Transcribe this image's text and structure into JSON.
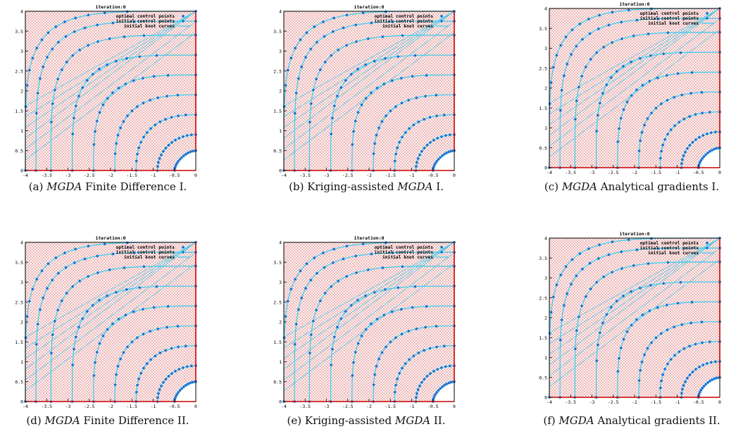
{
  "figure": {
    "panels": [
      {
        "id": "a",
        "caption": {
          "tag": "(a)",
          "pre": "",
          "em": "MGDA",
          "post": " Finite Difference I."
        }
      },
      {
        "id": "b",
        "caption": {
          "tag": "(b)",
          "pre": "Kriging-assisted ",
          "em": "MGDA",
          "post": " I."
        }
      },
      {
        "id": "c",
        "caption": {
          "tag": "(c)",
          "pre": "",
          "em": "MGDA",
          "post": " Analytical gradients I."
        }
      },
      {
        "id": "d",
        "caption": {
          "tag": "(d)",
          "pre": "",
          "em": "MGDA",
          "post": " Finite Difference II."
        }
      },
      {
        "id": "e",
        "caption": {
          "tag": "(e)",
          "pre": "Kriging-assisted ",
          "em": "MGDA",
          "post": " II."
        }
      },
      {
        "id": "f",
        "caption": {
          "tag": "(f)",
          "pre": "",
          "em": "MGDA",
          "post": " Analytical gradients II."
        }
      }
    ]
  },
  "chart_data": {
    "type": "scatter",
    "title": "iteration:0",
    "legend": [
      "optimal control points",
      "initial control points",
      "initial knot curves"
    ],
    "legend_placement": "top-right",
    "xlim": [
      -4,
      0
    ],
    "ylim": [
      0,
      4
    ],
    "xticks": [
      "-4",
      "-3.5",
      "-3",
      "-2.5",
      "-2",
      "-1.5",
      "-1",
      "-0.5",
      "0"
    ],
    "yticks": [
      "0",
      "0.5",
      "1",
      "1.5",
      "2",
      "2.5",
      "3",
      "3.5",
      "4"
    ],
    "colors": {
      "mesh": "#e8a0a0",
      "border": "#cc0000",
      "curves": "#33ccee",
      "points": "#3355cc"
    },
    "curve_levels": [
      0.5,
      0.9,
      1.4,
      1.9,
      2.4,
      2.9,
      3.4,
      3.75,
      4.0
    ]
  }
}
